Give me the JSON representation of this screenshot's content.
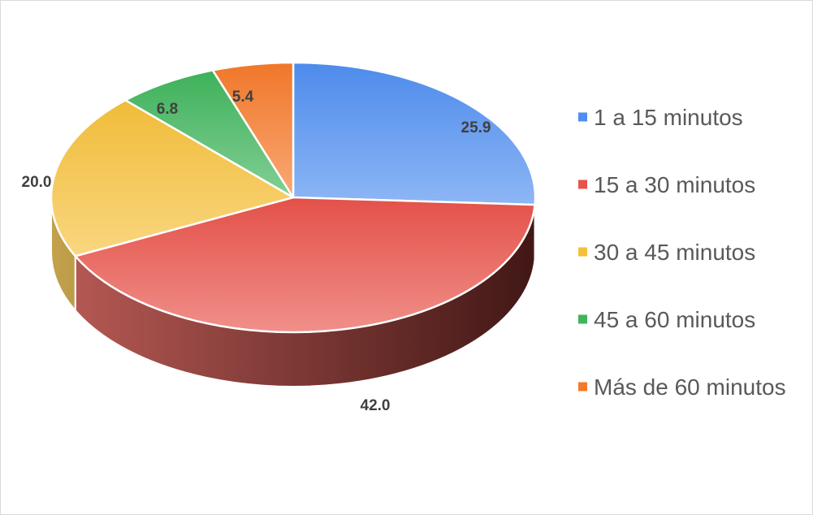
{
  "chart_data": {
    "type": "pie",
    "variant": "3d",
    "title": "",
    "legend_position": "right",
    "series": [
      {
        "categories": [
          "1 a 15 minutos",
          "15 a 30 minutos",
          "30 a 45 minutos",
          "45 a 60 minutos",
          "Más de 60 minutos"
        ],
        "values": [
          25.9,
          42.0,
          20.0,
          6.8,
          5.4
        ],
        "labels": [
          "25.9",
          "42.0",
          "20.0",
          "6.8",
          "5.4"
        ],
        "colors": [
          "#4f8ef0",
          "#e8534a",
          "#f5c03a",
          "#3fb55c",
          "#f5792a"
        ]
      }
    ]
  }
}
